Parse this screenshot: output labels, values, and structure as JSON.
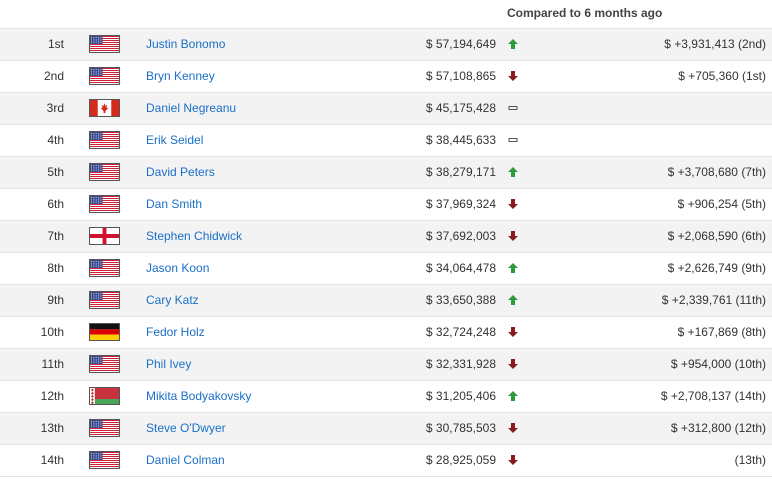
{
  "header": {
    "compare_label": "Compared to 6 months ago"
  },
  "colors": {
    "link": "#1a6fc9",
    "up": "#2e9a3e",
    "down": "#8b1a1a",
    "same": "#555555"
  },
  "rows": [
    {
      "rank": "1st",
      "flag": "us",
      "flag_icon": "us-flag-icon",
      "name": "Justin Bonomo",
      "earnings": "$ 57,194,649",
      "trend": "up",
      "change": "$ +3,931,413 (2nd)"
    },
    {
      "rank": "2nd",
      "flag": "us",
      "flag_icon": "us-flag-icon",
      "name": "Bryn Kenney",
      "earnings": "$ 57,108,865",
      "trend": "down",
      "change": "$ +705,360 (1st)"
    },
    {
      "rank": "3rd",
      "flag": "ca",
      "flag_icon": "canada-flag-icon",
      "name": "Daniel Negreanu",
      "earnings": "$ 45,175,428",
      "trend": "same",
      "change": ""
    },
    {
      "rank": "4th",
      "flag": "us",
      "flag_icon": "us-flag-icon",
      "name": "Erik Seidel",
      "earnings": "$ 38,445,633",
      "trend": "same",
      "change": ""
    },
    {
      "rank": "5th",
      "flag": "us",
      "flag_icon": "us-flag-icon",
      "name": "David Peters",
      "earnings": "$ 38,279,171",
      "trend": "up",
      "change": "$ +3,708,680 (7th)"
    },
    {
      "rank": "6th",
      "flag": "us",
      "flag_icon": "us-flag-icon",
      "name": "Dan Smith",
      "earnings": "$ 37,969,324",
      "trend": "down",
      "change": "$ +906,254 (5th)"
    },
    {
      "rank": "7th",
      "flag": "en",
      "flag_icon": "england-flag-icon",
      "name": "Stephen Chidwick",
      "earnings": "$ 37,692,003",
      "trend": "down",
      "change": "$ +2,068,590 (6th)"
    },
    {
      "rank": "8th",
      "flag": "us",
      "flag_icon": "us-flag-icon",
      "name": "Jason Koon",
      "earnings": "$ 34,064,478",
      "trend": "up",
      "change": "$ +2,626,749 (9th)"
    },
    {
      "rank": "9th",
      "flag": "us",
      "flag_icon": "us-flag-icon",
      "name": "Cary Katz",
      "earnings": "$ 33,650,388",
      "trend": "up",
      "change": "$ +2,339,761 (11th)"
    },
    {
      "rank": "10th",
      "flag": "de",
      "flag_icon": "germany-flag-icon",
      "name": "Fedor Holz",
      "earnings": "$ 32,724,248",
      "trend": "down",
      "change": "$ +167,869 (8th)"
    },
    {
      "rank": "11th",
      "flag": "us",
      "flag_icon": "us-flag-icon",
      "name": "Phil Ivey",
      "earnings": "$ 32,331,928",
      "trend": "down",
      "change": "$ +954,000 (10th)"
    },
    {
      "rank": "12th",
      "flag": "by",
      "flag_icon": "belarus-flag-icon",
      "name": "Mikita Bodyakovsky",
      "earnings": "$ 31,205,406",
      "trend": "up",
      "change": "$ +2,708,137 (14th)"
    },
    {
      "rank": "13th",
      "flag": "us",
      "flag_icon": "us-flag-icon",
      "name": "Steve O'Dwyer",
      "earnings": "$ 30,785,503",
      "trend": "down",
      "change": "$ +312,800 (12th)"
    },
    {
      "rank": "14th",
      "flag": "us",
      "flag_icon": "us-flag-icon",
      "name": "Daniel Colman",
      "earnings": "$ 28,925,059",
      "trend": "down",
      "change": "(13th)"
    }
  ]
}
